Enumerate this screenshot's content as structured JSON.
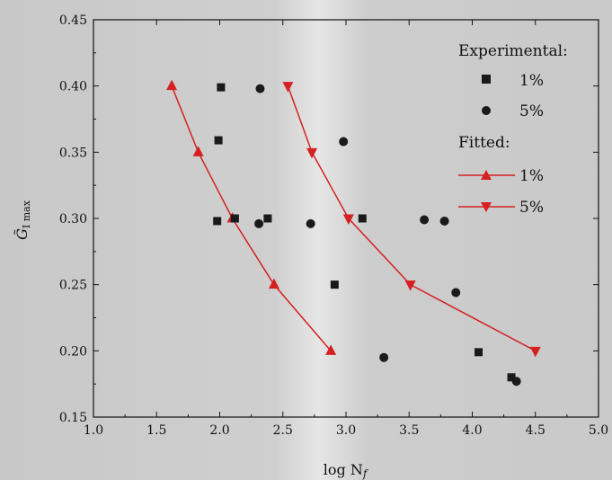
{
  "chart_data": {
    "type": "scatter",
    "xlabel": "log N",
    "xlabel_sub": "f",
    "ylabel": "G̃",
    "ylabel_sub": "I max",
    "xlim": [
      1.0,
      5.0
    ],
    "ylim": [
      0.15,
      0.45
    ],
    "x_ticks": [
      "1.0",
      "1.5",
      "2.0",
      "2.5",
      "3.0",
      "3.5",
      "4.0",
      "4.5",
      "5.0"
    ],
    "y_ticks": [
      "0.15",
      "0.20",
      "0.25",
      "0.30",
      "0.35",
      "0.40",
      "0.45"
    ],
    "grid": false,
    "legend_position": "top-right",
    "legend": {
      "experimental_title": "Experimental:",
      "fitted_title": "Fitted:",
      "exp_1_label": "1%",
      "exp_5_label": "5%",
      "fit_1_label": "1%",
      "fit_5_label": "5%"
    },
    "colors": {
      "experimental": "#1a1a1a",
      "fitted": "#d42020"
    },
    "experimental": [
      {
        "name": "1%",
        "marker": "square",
        "points": [
          [
            2.01,
            0.399
          ],
          [
            1.99,
            0.359
          ],
          [
            1.98,
            0.298
          ],
          [
            2.12,
            0.3
          ],
          [
            2.38,
            0.3
          ],
          [
            3.13,
            0.3
          ],
          [
            2.91,
            0.25
          ],
          [
            4.05,
            0.199
          ],
          [
            4.31,
            0.18
          ]
        ]
      },
      {
        "name": "5%",
        "marker": "circle",
        "points": [
          [
            2.32,
            0.398
          ],
          [
            2.98,
            0.358
          ],
          [
            2.31,
            0.296
          ],
          [
            2.72,
            0.296
          ],
          [
            3.62,
            0.299
          ],
          [
            3.78,
            0.298
          ],
          [
            3.87,
            0.244
          ],
          [
            3.3,
            0.195
          ],
          [
            4.35,
            0.177
          ]
        ]
      }
    ],
    "fitted": [
      {
        "name": "1%",
        "marker": "triangle-up",
        "points": [
          [
            1.62,
            0.4
          ],
          [
            1.83,
            0.35
          ],
          [
            2.1,
            0.3
          ],
          [
            2.43,
            0.25
          ],
          [
            2.88,
            0.2
          ]
        ]
      },
      {
        "name": "5%",
        "marker": "triangle-down",
        "points": [
          [
            2.54,
            0.4
          ],
          [
            2.73,
            0.35
          ],
          [
            3.02,
            0.3
          ],
          [
            3.51,
            0.25
          ],
          [
            4.5,
            0.2
          ]
        ]
      }
    ]
  }
}
